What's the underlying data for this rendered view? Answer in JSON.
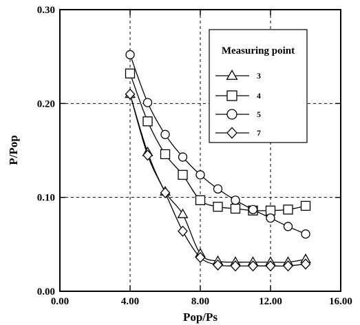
{
  "chart_data": {
    "type": "line",
    "xlabel": "Pop/Ps",
    "ylabel": "P/Pop",
    "xlim": [
      0,
      16
    ],
    "ylim": [
      0,
      0.3
    ],
    "x_ticks": [
      "0.00",
      "4.00",
      "8.00",
      "12.00",
      "16.00"
    ],
    "y_ticks": [
      "0.00",
      "0.10",
      "0.20",
      "0.30"
    ],
    "grid": "dashed at x=4,8,12 and y=0.1,0.2",
    "legend": {
      "title": "Measuring point",
      "placement": "top-right"
    },
    "series": [
      {
        "name": "3",
        "marker": "triangle",
        "x": [
          4,
          5,
          6,
          7,
          8,
          9,
          10,
          11,
          12,
          13,
          14
        ],
        "y": [
          0.21,
          0.148,
          0.106,
          0.082,
          0.04,
          0.032,
          0.031,
          0.031,
          0.031,
          0.031,
          0.034
        ]
      },
      {
        "name": "4",
        "marker": "square",
        "x": [
          4,
          5,
          6,
          7,
          8,
          9,
          10,
          11,
          12,
          13,
          14
        ],
        "y": [
          0.232,
          0.181,
          0.146,
          0.124,
          0.097,
          0.09,
          0.088,
          0.086,
          0.086,
          0.087,
          0.091
        ]
      },
      {
        "name": "5",
        "marker": "circle",
        "x": [
          4,
          5,
          6,
          7,
          8,
          9,
          10,
          11,
          12,
          13,
          14
        ],
        "y": [
          0.252,
          0.201,
          0.167,
          0.143,
          0.124,
          0.109,
          0.097,
          0.087,
          0.078,
          0.069,
          0.061
        ]
      },
      {
        "name": "7",
        "marker": "diamond",
        "x": [
          4,
          5,
          6,
          7,
          8,
          9,
          10,
          11,
          12,
          13,
          14
        ],
        "y": [
          0.21,
          0.145,
          0.105,
          0.064,
          0.036,
          0.028,
          0.027,
          0.027,
          0.027,
          0.027,
          0.029
        ]
      }
    ]
  }
}
